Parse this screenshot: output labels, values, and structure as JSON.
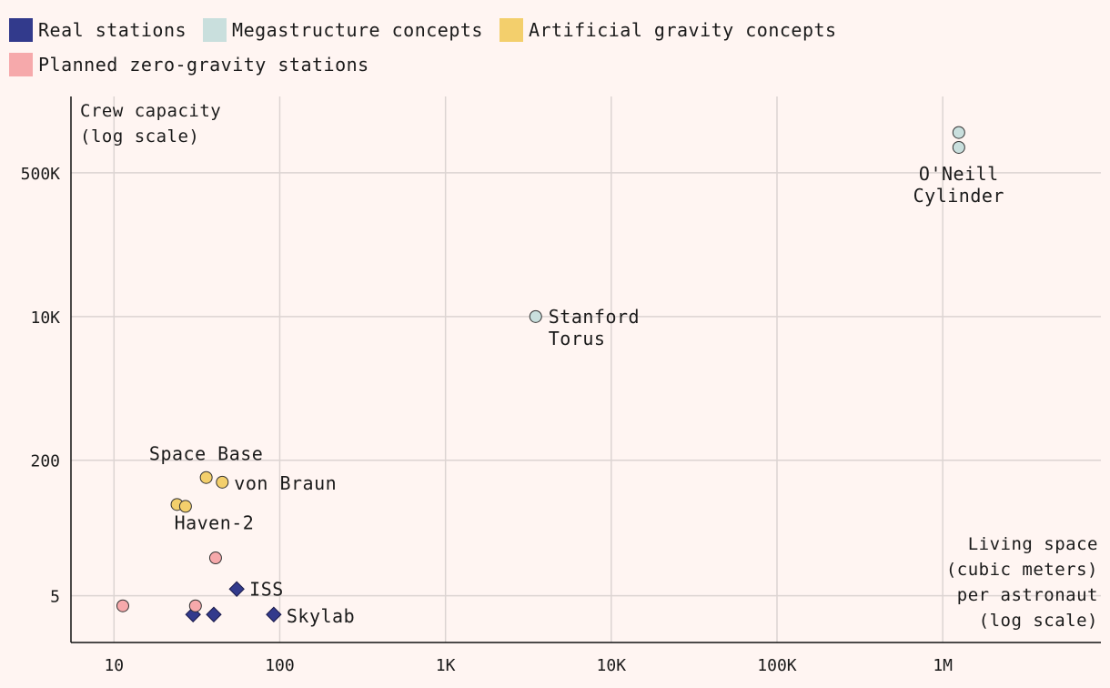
{
  "legend": [
    {
      "label": "Real stations",
      "color": "#323a8c"
    },
    {
      "label": "Megastructure concepts",
      "color": "#c9dfdd"
    },
    {
      "label": "Artificial gravity concepts",
      "color": "#f3cf6c"
    },
    {
      "label": "Planned zero-gravity stations",
      "color": "#f6a9ab"
    }
  ],
  "chart_data": {
    "type": "scatter",
    "xscale": "log",
    "yscale": "log",
    "xlim": [
      5.5,
      9000000
    ],
    "ylim": [
      1.4,
      4000000
    ],
    "xlabel": [
      "Living space",
      "(cubic meters)",
      "per astronaut",
      "(log scale)"
    ],
    "ylabel": [
      "Crew capacity",
      "(log scale)"
    ],
    "xticks": [
      {
        "v": 10,
        "label": "10"
      },
      {
        "v": 100,
        "label": "100"
      },
      {
        "v": 1000,
        "label": "1K"
      },
      {
        "v": 10000,
        "label": "10K"
      },
      {
        "v": 100000,
        "label": "100K"
      },
      {
        "v": 1000000,
        "label": "1M"
      }
    ],
    "yticks": [
      {
        "v": 5,
        "label": "5"
      },
      {
        "v": 200,
        "label": "200"
      },
      {
        "v": 10000,
        "label": "10K"
      },
      {
        "v": 500000,
        "label": "500K"
      }
    ],
    "series": [
      {
        "name": "Real stations",
        "shape": "diamond",
        "color": "#323a8c",
        "points": [
          {
            "x": 55,
            "y": 6,
            "label": "ISS"
          },
          {
            "x": 92,
            "y": 3,
            "label": "Skylab"
          },
          {
            "x": 30,
            "y": 3
          },
          {
            "x": 40,
            "y": 3
          }
        ]
      },
      {
        "name": "Megastructure concepts",
        "shape": "circle",
        "color": "#c9dfdd",
        "points": [
          {
            "x": 1250000,
            "y": 1500000
          },
          {
            "x": 1250000,
            "y": 1000000,
            "label": "O'Neill Cylinder"
          },
          {
            "x": 3500,
            "y": 10000,
            "label": "Stanford Torus"
          }
        ]
      },
      {
        "name": "Artificial gravity concepts",
        "shape": "circle",
        "color": "#f3cf6c",
        "points": [
          {
            "x": 36,
            "y": 125,
            "label": "Space Base"
          },
          {
            "x": 45,
            "y": 110,
            "label": "von Braun"
          },
          {
            "x": 24,
            "y": 60,
            "label": "Haven-2"
          },
          {
            "x": 27,
            "y": 57
          }
        ]
      },
      {
        "name": "Planned zero-gravity stations",
        "shape": "circle",
        "color": "#f6a9ab",
        "points": [
          {
            "x": 41,
            "y": 14
          },
          {
            "x": 11.3,
            "y": 3.8
          },
          {
            "x": 31,
            "y": 3.8
          }
        ]
      }
    ]
  }
}
